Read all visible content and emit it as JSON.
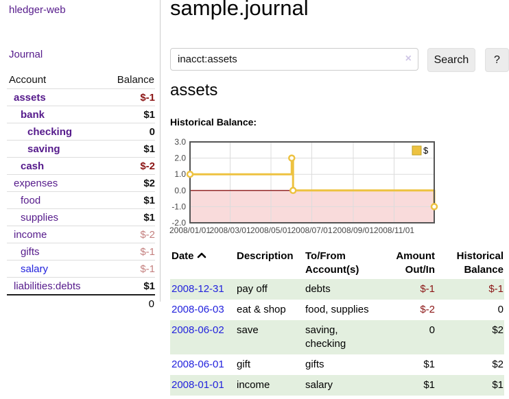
{
  "sidebar": {
    "brand": "hledger-web",
    "journal_link": "Journal",
    "accounts_header": {
      "account": "Account",
      "balance": "Balance"
    },
    "accounts": [
      {
        "name": "assets",
        "depth": 1,
        "bold": true,
        "balance": "$-1",
        "neg": "strong"
      },
      {
        "name": "bank",
        "depth": 2,
        "bold": true,
        "balance": "$1",
        "neg": null
      },
      {
        "name": "checking",
        "depth": 3,
        "bold": true,
        "balance": "0",
        "neg": null
      },
      {
        "name": "saving",
        "depth": 3,
        "bold": true,
        "balance": "$1",
        "neg": null
      },
      {
        "name": "cash",
        "depth": 2,
        "bold": true,
        "balance": "$-2",
        "neg": "strong"
      },
      {
        "name": "expenses",
        "depth": 1,
        "bold": false,
        "balance": "$2",
        "neg": null
      },
      {
        "name": "food",
        "depth": 2,
        "bold": false,
        "balance": "$1",
        "neg": null
      },
      {
        "name": "supplies",
        "depth": 2,
        "bold": false,
        "balance": "$1",
        "neg": null
      },
      {
        "name": "income",
        "depth": 1,
        "bold": false,
        "balance": "$-2",
        "neg": "faded"
      },
      {
        "name": "gifts",
        "depth": 2,
        "bold": false,
        "balance": "$-1",
        "neg": "faded"
      },
      {
        "name": "salary",
        "depth": 2,
        "bold": false,
        "balance": "$-1",
        "neg": "faded",
        "blue": true
      },
      {
        "name": "liabilities:debts",
        "depth": 1,
        "bold": false,
        "balance": "$1",
        "neg": null
      }
    ],
    "total": "0"
  },
  "main": {
    "title": "sample.journal",
    "search": {
      "value": "inacct:assets",
      "clear_icon": "×",
      "button": "Search",
      "help_button": "?"
    },
    "account_heading": "assets",
    "chart_heading": "Historical Balance:"
  },
  "chart_data": {
    "type": "line",
    "subtype": "step",
    "title": "Historical Balance of assets",
    "series": [
      {
        "name": "$",
        "color": "#edc240",
        "points": [
          [
            "2008-01-01",
            1
          ],
          [
            "2008-06-01",
            2
          ],
          [
            "2008-06-03",
            0
          ],
          [
            "2008-12-31",
            -1
          ]
        ]
      }
    ],
    "xlim": [
      "2008-01-01",
      "2008-12-31"
    ],
    "ylim": [
      -2,
      3
    ],
    "y_ticks": [
      3,
      2,
      1,
      0,
      -1,
      -2
    ],
    "y_tick_labels": [
      "3.0",
      "2.0",
      "1.0",
      "0.0",
      "-1.0",
      "-2.0"
    ],
    "x_tick_labels": [
      "2008/01/01",
      "2008/03/01",
      "2008/05/01",
      "2008/07/01",
      "2008/09/01",
      "2008/11/01"
    ],
    "grid": true,
    "legend_position": "top-right",
    "legend_label": "$",
    "negative_region_color": "#f9dbdb",
    "zero_line_color": "#8b1a1a",
    "grid_color": "#dcdcdc",
    "border_color": "#545454",
    "tick_label_color": "#474747"
  },
  "register": {
    "headers": {
      "date": "Date",
      "description": "Description",
      "accounts": "To/From Account(s)",
      "amount": "Amount Out/In",
      "balance": "Historical Balance"
    },
    "sort": "date-ascending",
    "rows": [
      {
        "date": "2008-12-31",
        "description": "pay off",
        "accounts": "debts",
        "amount": "$-1",
        "amount_neg": true,
        "balance": "$-1",
        "balance_neg": true
      },
      {
        "date": "2008-06-03",
        "description": "eat & shop",
        "accounts": "food, supplies",
        "amount": "$-2",
        "amount_neg": true,
        "balance": "0",
        "balance_neg": false
      },
      {
        "date": "2008-06-02",
        "description": "save",
        "accounts": "saving, checking",
        "amount": "0",
        "amount_neg": false,
        "balance": "$2",
        "balance_neg": false
      },
      {
        "date": "2008-06-01",
        "description": "gift",
        "accounts": "gifts",
        "amount": "$1",
        "amount_neg": false,
        "balance": "$2",
        "balance_neg": false
      },
      {
        "date": "2008-01-01",
        "description": "income",
        "accounts": "salary",
        "amount": "$1",
        "amount_neg": false,
        "balance": "$1",
        "balance_neg": false
      }
    ]
  }
}
